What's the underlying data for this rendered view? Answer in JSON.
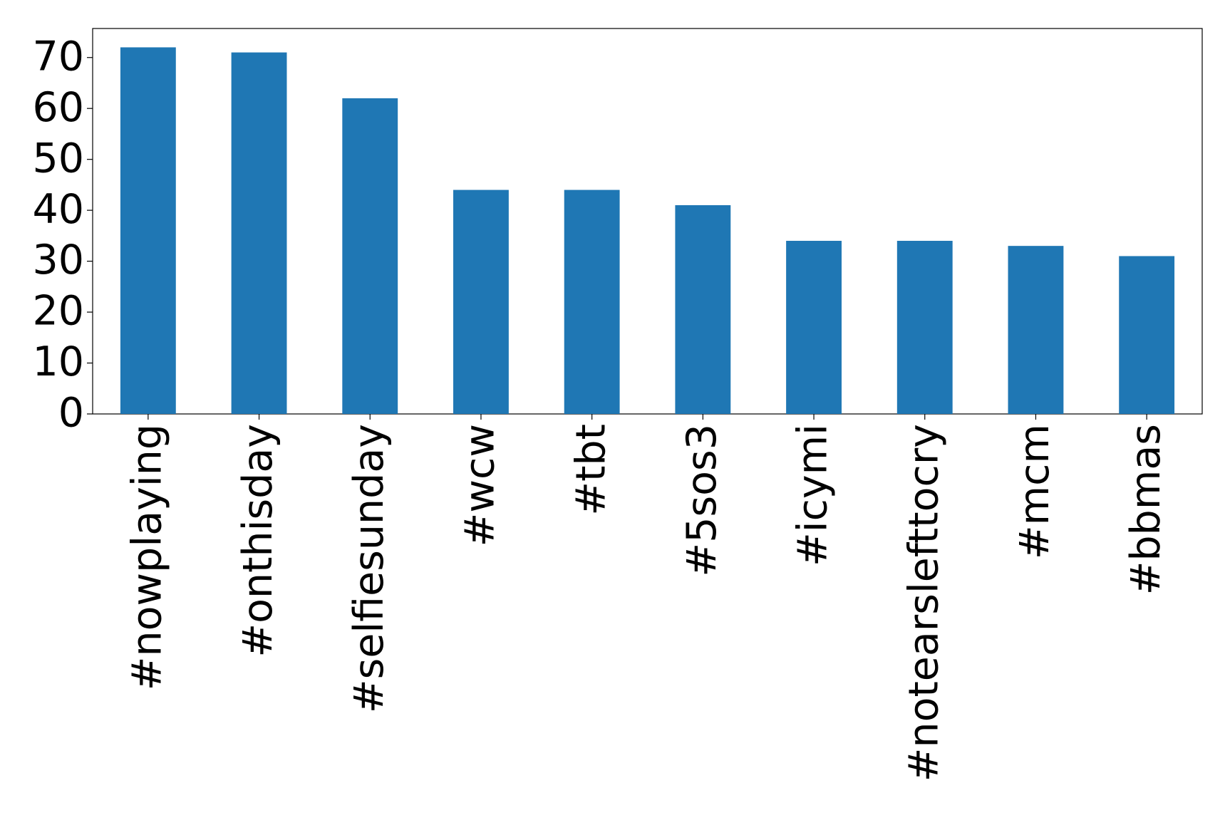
{
  "chart_data": {
    "type": "bar",
    "categories": [
      "#nowplaying",
      "#onthisday",
      "#selfiesunday",
      "#wcw",
      "#tbt",
      "#5sos3",
      "#icymi",
      "#notearslefttocry",
      "#mcm",
      "#bbmas"
    ],
    "values": [
      72,
      71,
      62,
      44,
      44,
      41,
      34,
      34,
      33,
      31
    ],
    "color": "#1f77b4",
    "ylim": [
      0,
      75.7
    ],
    "yticks": [
      0,
      10,
      20,
      30,
      40,
      50,
      60,
      70
    ],
    "grid": false
  }
}
